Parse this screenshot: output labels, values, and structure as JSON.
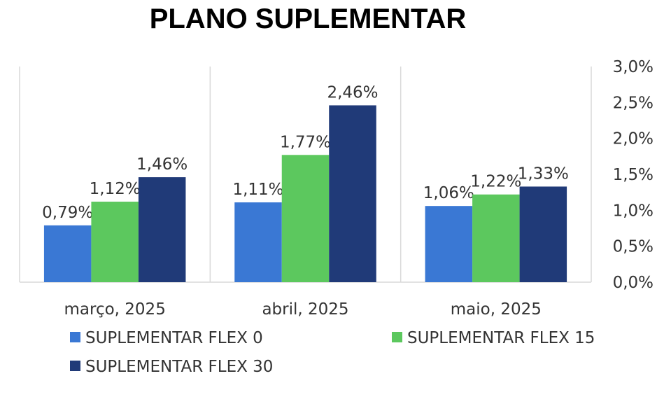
{
  "chart_data": {
    "type": "bar",
    "title": "PLANO SUPLEMENTAR",
    "categories": [
      "março, 2025",
      "abril, 2025",
      "maio, 2025"
    ],
    "series": [
      {
        "name": "SUPLEMENTAR FLEX 0",
        "color": "#3A78D4",
        "values": [
          0.79,
          1.11,
          1.06
        ],
        "labels": [
          "0,79%",
          "1,11%",
          "1,06%"
        ]
      },
      {
        "name": "SUPLEMENTAR FLEX 15",
        "color": "#5CC85E",
        "values": [
          1.12,
          1.77,
          1.22
        ],
        "labels": [
          "1,12%",
          "1,77%",
          "1,22%"
        ]
      },
      {
        "name": "SUPLEMENTAR FLEX 30",
        "color": "#203A78",
        "values": [
          1.46,
          2.46,
          1.33
        ],
        "labels": [
          "1,46%",
          "2,46%",
          "1,33%"
        ]
      }
    ],
    "ylim": [
      0,
      3.0
    ],
    "yticks": [
      "0,0%",
      "0,5%",
      "1,0%",
      "1,5%",
      "2,0%",
      "2,5%",
      "3,0%"
    ],
    "y_axis_side": "right",
    "grid": "vertical category separators",
    "legend": "bottom"
  }
}
